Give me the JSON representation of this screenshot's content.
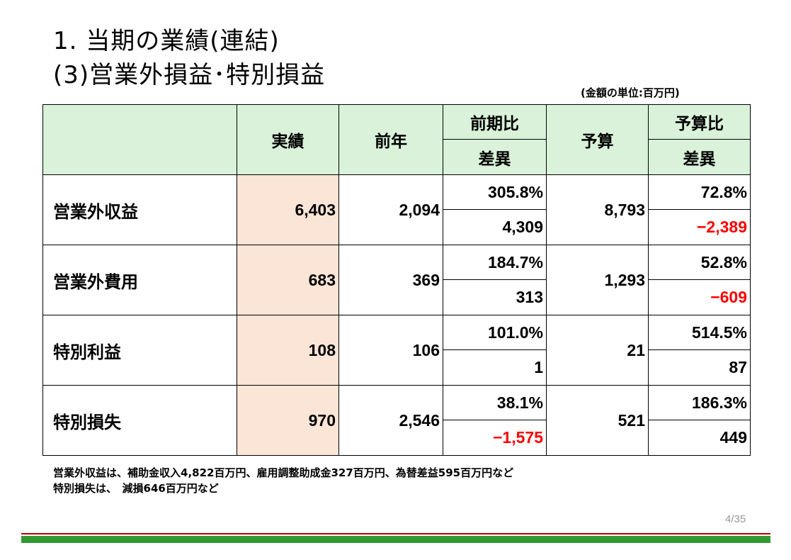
{
  "title": {
    "line1": "1. 当期の業績(連結)",
    "line2": "(3)営業外損益･特別損益"
  },
  "unit_note": "(金額の単位:百万円)",
  "table": {
    "headers": {
      "actual": "実績",
      "prev_year": "前年",
      "vs_prev": "前期比",
      "vs_prev_diff": "差異",
      "budget": "予算",
      "vs_budget": "予算比",
      "vs_budget_diff": "差異"
    },
    "rows": [
      {
        "label": "営業外収益",
        "actual": "6,403",
        "prev": "2,094",
        "vs_prev_pct": "305.8%",
        "vs_prev_diff": "4,309",
        "budget": "8,793",
        "vs_budget_pct": "72.8%",
        "vs_budget_diff": "−2,389"
      },
      {
        "label": "営業外費用",
        "actual": "683",
        "prev": "369",
        "vs_prev_pct": "184.7%",
        "vs_prev_diff": "313",
        "budget": "1,293",
        "vs_budget_pct": "52.8%",
        "vs_budget_diff": "−609"
      },
      {
        "label": "特別利益",
        "actual": "108",
        "prev": "106",
        "vs_prev_pct": "101.0%",
        "vs_prev_diff": "1",
        "budget": "21",
        "vs_budget_pct": "514.5%",
        "vs_budget_diff": "87"
      },
      {
        "label": "特別損失",
        "actual": "970",
        "prev": "2,546",
        "vs_prev_pct": "38.1%",
        "vs_prev_diff": "−1,575",
        "budget": "521",
        "vs_budget_pct": "186.3%",
        "vs_budget_diff": "449"
      }
    ]
  },
  "notes": {
    "line1": "営業外収益は、補助金収入4,822百万円、雇用調整助成金327百万円、為替差益595百万円など",
    "line2": "特別損失は、　減損646百万円など"
  },
  "page_number": "4/35",
  "colors": {
    "header_bg": "#d9f2d9",
    "actual_bg": "#fbe5d6",
    "negative": "#ff0000",
    "bar_red": "#c00000",
    "bar_green": "#339933"
  }
}
